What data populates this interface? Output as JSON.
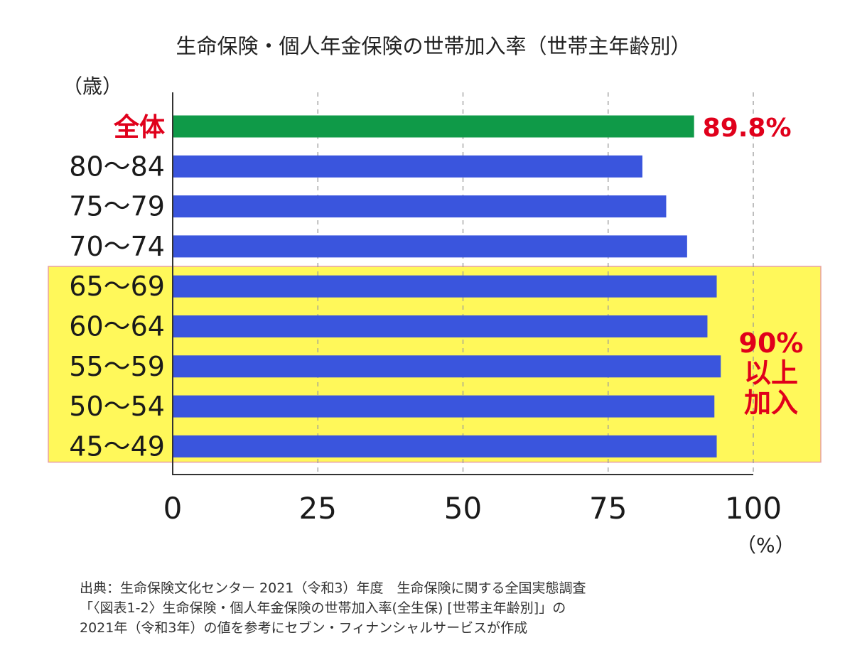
{
  "chart_data": {
    "type": "bar",
    "orientation": "horizontal",
    "title": "生命保険・個人年金保険の世帯加入率（世帯主年齢別）",
    "ylabel": "（歳）",
    "xlabel": "（%）",
    "xlim": [
      0,
      100
    ],
    "xticks": [
      "0",
      "25",
      "50",
      "75",
      "100"
    ],
    "grid": "vertical-dashed",
    "categories": [
      "全体",
      "80〜84",
      "75〜79",
      "70〜74",
      "65〜69",
      "60〜64",
      "55〜59",
      "50〜54",
      "45〜49"
    ],
    "values": [
      89.8,
      80.9,
      85.0,
      88.6,
      93.7,
      92.1,
      94.4,
      93.3,
      93.7
    ],
    "highlight_label": "89.8%",
    "highlight_categories": [
      "65〜69",
      "60〜64",
      "55〜59",
      "50〜54",
      "45〜49"
    ],
    "callout": [
      "90%",
      "以上",
      "加入"
    ],
    "colors": {
      "total_bar": "#0f9a48",
      "age_bar": "#3a55dd",
      "highlight_bg": "#fff85a",
      "highlight_border": "#e8a0a0",
      "accent_text": "#e0001b"
    }
  },
  "source_lines": [
    "出典：生命保険文化センター 2021（令和3）年度　生命保険に関する全国実態調査",
    "「〈図表1-2〉生命保険・個人年金保険の世帯加入率(全生保) [世帯主年齢別]」の",
    "2021年（令和3年）の値を参考にセブン・フィナンシャルサービスが作成"
  ]
}
